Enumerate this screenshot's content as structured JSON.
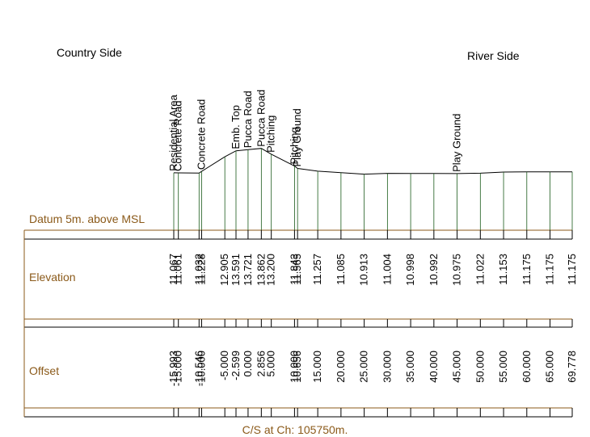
{
  "labels": {
    "country_side": "Country Side",
    "river_side": "River Side",
    "datum": "Datum 5m. above MSL",
    "elevation_header": "Elevation",
    "offset_header": "Offset",
    "caption": "C/S at Ch: 105750m."
  },
  "colors": {
    "brown": "#8b5a1a",
    "line": "#000000",
    "ground": "#1a5a1a"
  },
  "stations": [
    {
      "offset": "-15.993",
      "elevation": "11.067",
      "feature": "Residential Area"
    },
    {
      "offset": "-15.000",
      "elevation": "11.061",
      "feature": "Concrete Road"
    },
    {
      "offset": "-10.546",
      "elevation": "11.032",
      "feature": ""
    },
    {
      "offset": "-10.000",
      "elevation": "11.228",
      "feature": "Concrete Road"
    },
    {
      "offset": "-5.000",
      "elevation": "12.905",
      "feature": ""
    },
    {
      "offset": "-2.599",
      "elevation": "13.591",
      "feature": "Emb. Top"
    },
    {
      "offset": "0.000",
      "elevation": "13.721",
      "feature": "Pucca Road"
    },
    {
      "offset": "2.856",
      "elevation": "13.862",
      "feature": "Pucca Road"
    },
    {
      "offset": "5.000",
      "elevation": "13.200",
      "feature": "Pitching"
    },
    {
      "offset": "10.000",
      "elevation": "11.843",
      "feature": "Pitching"
    },
    {
      "offset": "10.656",
      "elevation": "11.565",
      "feature": "Play Ground"
    },
    {
      "offset": "15.000",
      "elevation": "11.257",
      "feature": ""
    },
    {
      "offset": "20.000",
      "elevation": "11.085",
      "feature": ""
    },
    {
      "offset": "25.000",
      "elevation": "10.913",
      "feature": ""
    },
    {
      "offset": "30.000",
      "elevation": "11.004",
      "feature": ""
    },
    {
      "offset": "35.000",
      "elevation": "10.998",
      "feature": ""
    },
    {
      "offset": "40.000",
      "elevation": "10.992",
      "feature": ""
    },
    {
      "offset": "45.000",
      "elevation": "10.975",
      "feature": "Play Ground"
    },
    {
      "offset": "50.000",
      "elevation": "11.022",
      "feature": ""
    },
    {
      "offset": "55.000",
      "elevation": "11.153",
      "feature": ""
    },
    {
      "offset": "60.000",
      "elevation": "11.175",
      "feature": ""
    },
    {
      "offset": "65.000",
      "elevation": "11.175",
      "feature": ""
    },
    {
      "offset": "69.778",
      "elevation": "11.175",
      "feature": ""
    }
  ]
}
